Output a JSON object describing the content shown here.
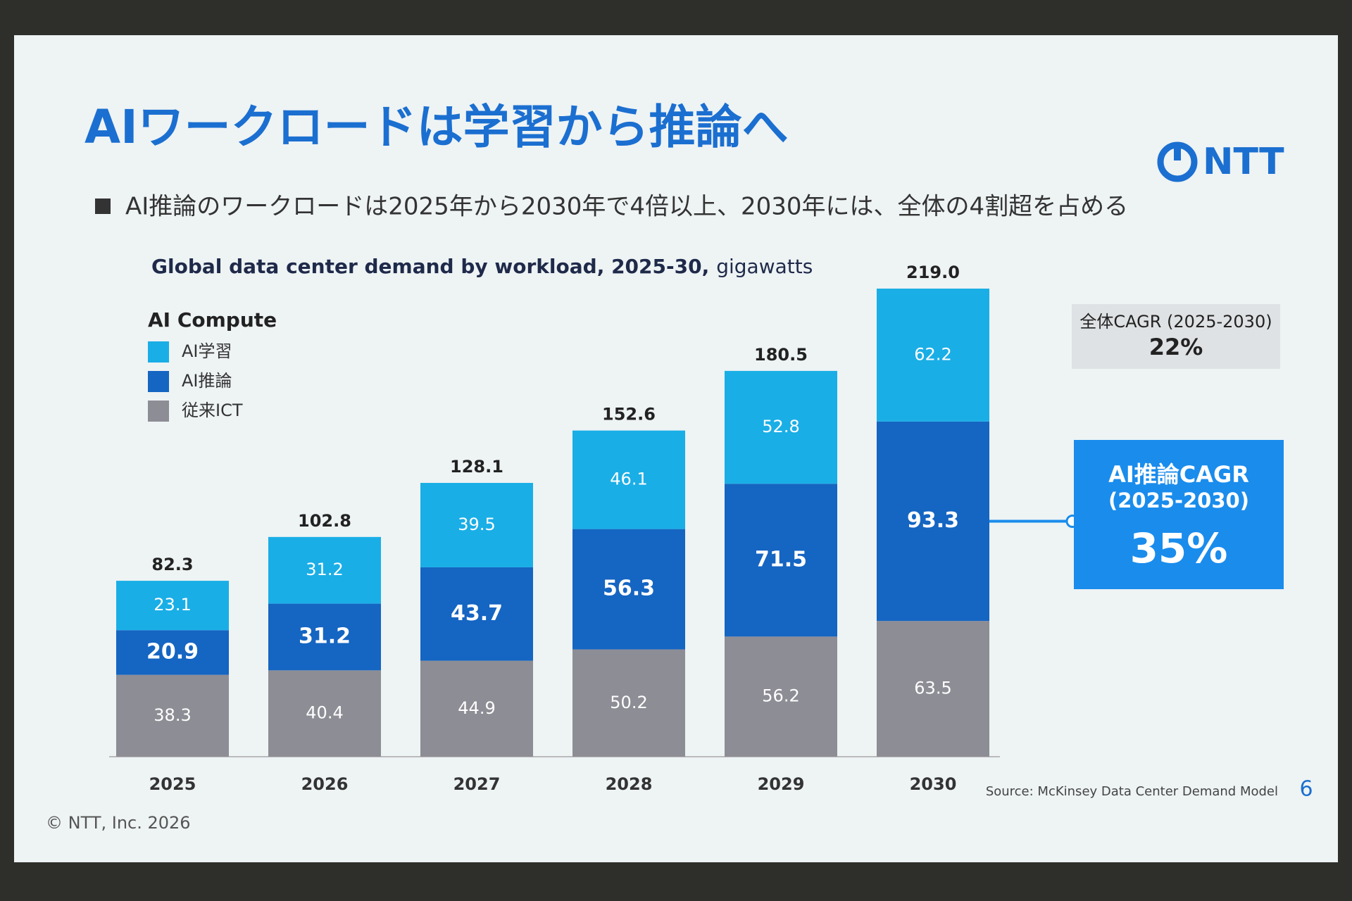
{
  "header": {
    "title": "AIワークロードは学習から推論へ",
    "subtitle": "AI推論のワークロードは2025年から2030年で4倍以上、2030年には、全体の4割超を占める",
    "logo": "NTT"
  },
  "chart_data": {
    "type": "stacked_bar",
    "title": "Global data center demand by workload, 2025-30,",
    "units": "gigawatts",
    "legend_title": "AI Compute",
    "categories": [
      "2025",
      "2026",
      "2027",
      "2028",
      "2029",
      "2030"
    ],
    "series": [
      {
        "name": "AI学習",
        "color": "#1aaee6",
        "values": [
          23.1,
          31.2,
          39.5,
          46.1,
          52.8,
          62.2
        ]
      },
      {
        "name": "AI推論",
        "color": "#1565c2",
        "values": [
          20.9,
          31.2,
          43.7,
          56.3,
          71.5,
          93.3
        ]
      },
      {
        "name": "従来ICT",
        "color": "#8d8d95",
        "values": [
          38.3,
          40.4,
          44.9,
          50.2,
          56.2,
          63.5
        ]
      }
    ],
    "totals": [
      82.3,
      102.8,
      128.1,
      152.6,
      180.5,
      219.0
    ],
    "total_labels": [
      "82.3",
      "102.8",
      "128.1",
      "152.6",
      "180.5",
      "219.0"
    ]
  },
  "annotations": [
    {
      "label": "全体CAGR (2025-2030)",
      "value": "22%"
    },
    {
      "label": "AI推論CAGR",
      "sublabel": "(2025-2030)",
      "value": "35%"
    }
  ],
  "footer": {
    "source": "Source: McKinsey Data Center Demand Model",
    "page": "6",
    "copyright": "© NTT, Inc.  2026"
  }
}
